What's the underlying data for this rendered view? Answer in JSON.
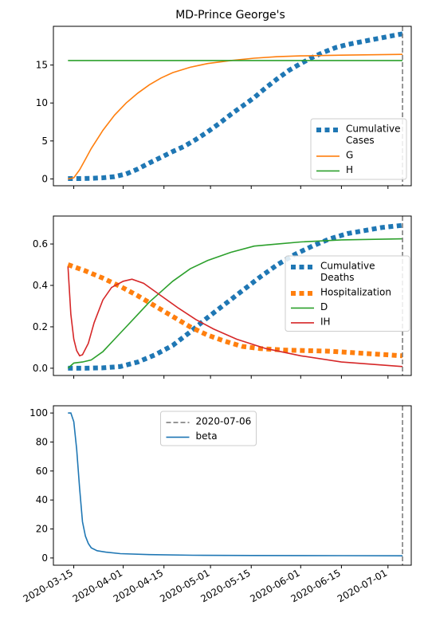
{
  "chart_data": [
    {
      "type": "line",
      "title": "MD-Prince George's",
      "ylim": [
        -0.9,
        20.1
      ],
      "yticks": [
        0,
        5,
        10,
        15
      ],
      "vline": "2020-07-06",
      "legend_position": "lower-right",
      "series": [
        {
          "name": "Cumulative\nCases",
          "color": "#1f77b4",
          "style": "dotted",
          "points": [
            [
              "2020-03-13",
              0.05
            ],
            [
              "2020-03-17",
              0.05
            ],
            [
              "2020-03-21",
              0.08
            ],
            [
              "2020-03-25",
              0.15
            ],
            [
              "2020-03-29",
              0.3
            ],
            [
              "2020-04-02",
              0.65
            ],
            [
              "2020-04-06",
              1.3
            ],
            [
              "2020-04-10",
              2.1
            ],
            [
              "2020-04-14",
              2.85
            ],
            [
              "2020-04-18",
              3.6
            ],
            [
              "2020-04-22",
              4.3
            ],
            [
              "2020-04-26",
              5.2
            ],
            [
              "2020-04-30",
              6.2
            ],
            [
              "2020-05-04",
              7.3
            ],
            [
              "2020-05-08",
              8.5
            ],
            [
              "2020-05-12",
              9.6
            ],
            [
              "2020-05-16",
              10.7
            ],
            [
              "2020-05-20",
              12.0
            ],
            [
              "2020-05-24",
              13.2
            ],
            [
              "2020-05-28",
              14.3
            ],
            [
              "2020-06-01",
              15.2
            ],
            [
              "2020-06-05",
              16.0
            ],
            [
              "2020-06-09",
              16.7
            ],
            [
              "2020-06-13",
              17.3
            ],
            [
              "2020-06-17",
              17.7
            ],
            [
              "2020-06-21",
              18.0
            ],
            [
              "2020-06-25",
              18.3
            ],
            [
              "2020-06-29",
              18.6
            ],
            [
              "2020-07-03",
              18.9
            ],
            [
              "2020-07-06",
              19.1
            ]
          ]
        },
        {
          "name": "G",
          "color": "#ff7f0e",
          "style": "solid",
          "points": [
            [
              "2020-03-13",
              0.0
            ],
            [
              "2020-03-15",
              0.15
            ],
            [
              "2020-03-17",
              1.2
            ],
            [
              "2020-03-19",
              2.6
            ],
            [
              "2020-03-21",
              4.0
            ],
            [
              "2020-03-25",
              6.4
            ],
            [
              "2020-03-29",
              8.4
            ],
            [
              "2020-04-02",
              10.0
            ],
            [
              "2020-04-06",
              11.3
            ],
            [
              "2020-04-10",
              12.4
            ],
            [
              "2020-04-14",
              13.3
            ],
            [
              "2020-04-18",
              14.0
            ],
            [
              "2020-04-24",
              14.7
            ],
            [
              "2020-04-30",
              15.2
            ],
            [
              "2020-05-08",
              15.6
            ],
            [
              "2020-05-16",
              15.9
            ],
            [
              "2020-05-24",
              16.1
            ],
            [
              "2020-06-01",
              16.2
            ],
            [
              "2020-06-15",
              16.3
            ],
            [
              "2020-07-06",
              16.4
            ]
          ]
        },
        {
          "name": "H",
          "color": "#2ca02c",
          "style": "solid",
          "points": [
            [
              "2020-03-13",
              15.6
            ],
            [
              "2020-07-06",
              15.6
            ]
          ]
        }
      ]
    },
    {
      "type": "line",
      "title": "",
      "ylim": [
        -0.035,
        0.735
      ],
      "yticks": [
        0.0,
        0.2,
        0.4,
        0.6
      ],
      "vline": "2020-07-06",
      "legend_position": "center-right",
      "series": [
        {
          "name": "Cumulative\nDeaths",
          "color": "#1f77b4",
          "style": "dotted",
          "points": [
            [
              "2020-03-13",
              0.0
            ],
            [
              "2020-03-19",
              0.0
            ],
            [
              "2020-03-25",
              0.002
            ],
            [
              "2020-03-31",
              0.008
            ],
            [
              "2020-04-06",
              0.03
            ],
            [
              "2020-04-12",
              0.065
            ],
            [
              "2020-04-18",
              0.11
            ],
            [
              "2020-04-24",
              0.175
            ],
            [
              "2020-04-30",
              0.245
            ],
            [
              "2020-05-06",
              0.31
            ],
            [
              "2020-05-12",
              0.375
            ],
            [
              "2020-05-18",
              0.44
            ],
            [
              "2020-05-24",
              0.5
            ],
            [
              "2020-05-30",
              0.55
            ],
            [
              "2020-06-05",
              0.59
            ],
            [
              "2020-06-11",
              0.625
            ],
            [
              "2020-06-17",
              0.65
            ],
            [
              "2020-06-23",
              0.665
            ],
            [
              "2020-06-29",
              0.68
            ],
            [
              "2020-07-06",
              0.69
            ]
          ]
        },
        {
          "name": "Hospitalization",
          "color": "#ff7f0e",
          "style": "dotted",
          "points": [
            [
              "2020-03-13",
              0.5
            ],
            [
              "2020-03-19",
              0.47
            ],
            [
              "2020-03-25",
              0.435
            ],
            [
              "2020-03-31",
              0.395
            ],
            [
              "2020-04-06",
              0.35
            ],
            [
              "2020-04-12",
              0.3
            ],
            [
              "2020-04-18",
              0.25
            ],
            [
              "2020-04-24",
              0.2
            ],
            [
              "2020-04-30",
              0.16
            ],
            [
              "2020-05-06",
              0.13
            ],
            [
              "2020-05-12",
              0.105
            ],
            [
              "2020-05-18",
              0.095
            ],
            [
              "2020-05-26",
              0.088
            ],
            [
              "2020-06-03",
              0.085
            ],
            [
              "2020-06-11",
              0.082
            ],
            [
              "2020-06-19",
              0.075
            ],
            [
              "2020-06-27",
              0.068
            ],
            [
              "2020-07-06",
              0.06
            ]
          ]
        },
        {
          "name": "D",
          "color": "#2ca02c",
          "style": "solid",
          "points": [
            [
              "2020-03-13",
              0.0
            ],
            [
              "2020-03-15",
              0.025
            ],
            [
              "2020-03-18",
              0.03
            ],
            [
              "2020-03-21",
              0.04
            ],
            [
              "2020-03-25",
              0.08
            ],
            [
              "2020-03-29",
              0.14
            ],
            [
              "2020-04-02",
              0.2
            ],
            [
              "2020-04-06",
              0.26
            ],
            [
              "2020-04-10",
              0.32
            ],
            [
              "2020-04-14",
              0.37
            ],
            [
              "2020-04-18",
              0.42
            ],
            [
              "2020-04-24",
              0.48
            ],
            [
              "2020-04-30",
              0.52
            ],
            [
              "2020-05-08",
              0.56
            ],
            [
              "2020-05-16",
              0.59
            ],
            [
              "2020-05-24",
              0.6
            ],
            [
              "2020-06-01",
              0.61
            ],
            [
              "2020-06-15",
              0.62
            ],
            [
              "2020-07-06",
              0.625
            ]
          ]
        },
        {
          "name": "IH",
          "color": "#d62728",
          "style": "solid",
          "points": [
            [
              "2020-03-13",
              0.49
            ],
            [
              "2020-03-14",
              0.26
            ],
            [
              "2020-03-15",
              0.14
            ],
            [
              "2020-03-16",
              0.085
            ],
            [
              "2020-03-17",
              0.06
            ],
            [
              "2020-03-18",
              0.065
            ],
            [
              "2020-03-20",
              0.12
            ],
            [
              "2020-03-22",
              0.22
            ],
            [
              "2020-03-25",
              0.33
            ],
            [
              "2020-03-28",
              0.39
            ],
            [
              "2020-04-01",
              0.42
            ],
            [
              "2020-04-04",
              0.43
            ],
            [
              "2020-04-08",
              0.41
            ],
            [
              "2020-04-14",
              0.35
            ],
            [
              "2020-04-20",
              0.29
            ],
            [
              "2020-04-26",
              0.235
            ],
            [
              "2020-05-02",
              0.19
            ],
            [
              "2020-05-10",
              0.14
            ],
            [
              "2020-05-20",
              0.095
            ],
            [
              "2020-06-01",
              0.06
            ],
            [
              "2020-06-15",
              0.03
            ],
            [
              "2020-07-06",
              0.008
            ]
          ]
        }
      ]
    },
    {
      "type": "line",
      "title": "",
      "ylim": [
        -5,
        105
      ],
      "yticks": [
        0,
        20,
        40,
        60,
        80,
        100
      ],
      "vline": "2020-07-06",
      "legend_position": "upper-center",
      "vline_label": "2020-07-06",
      "series": [
        {
          "name": "beta",
          "color": "#1f77b4",
          "style": "solid",
          "points": [
            [
              "2020-03-13",
              100
            ],
            [
              "2020-03-14",
              100
            ],
            [
              "2020-03-15",
              94
            ],
            [
              "2020-03-16",
              75
            ],
            [
              "2020-03-17",
              48
            ],
            [
              "2020-03-18",
              25
            ],
            [
              "2020-03-19",
              15
            ],
            [
              "2020-03-20",
              10
            ],
            [
              "2020-03-21",
              7
            ],
            [
              "2020-03-23",
              5
            ],
            [
              "2020-03-26",
              4
            ],
            [
              "2020-03-31",
              3
            ],
            [
              "2020-04-10",
              2.3
            ],
            [
              "2020-04-25",
              1.9
            ],
            [
              "2020-05-15",
              1.7
            ],
            [
              "2020-06-15",
              1.6
            ],
            [
              "2020-07-06",
              1.5
            ]
          ]
        }
      ]
    }
  ],
  "xaxis": {
    "ticks": [
      "2020-03-15",
      "2020-04-01",
      "2020-04-15",
      "2020-05-01",
      "2020-05-15",
      "2020-06-01",
      "2020-06-15",
      "2020-07-01"
    ],
    "range": [
      "2020-03-08",
      "2020-07-09"
    ]
  }
}
